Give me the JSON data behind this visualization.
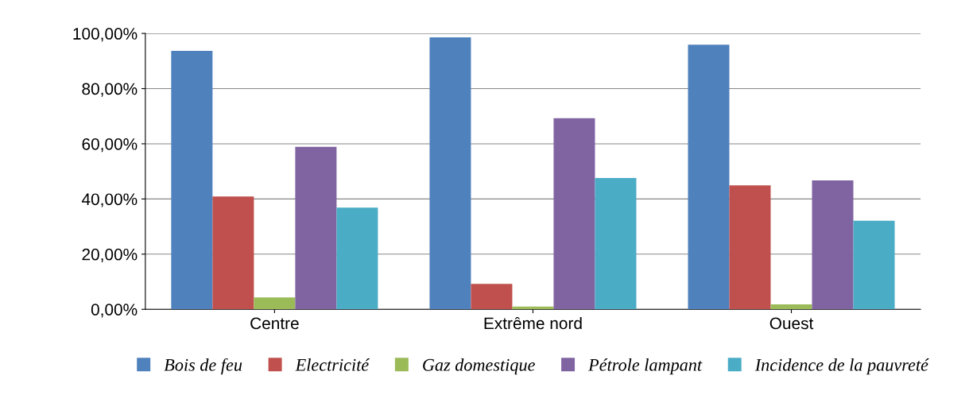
{
  "chart_data": {
    "type": "bar",
    "categories": [
      "Centre",
      "Extrême nord",
      "Ouest"
    ],
    "series": [
      {
        "name": "Bois de feu",
        "color": "#4f81bd",
        "values": [
          93.7,
          98.6,
          95.9
        ]
      },
      {
        "name": "Electricité",
        "color": "#c0504d",
        "values": [
          40.9,
          9.2,
          44.9
        ]
      },
      {
        "name": "Gaz domestique",
        "color": "#9bbb59",
        "values": [
          4.3,
          1,
          1.8
        ]
      },
      {
        "name": "Pétrole lampant",
        "color": "#8064a2",
        "values": [
          58.9,
          69.3,
          46.7
        ]
      },
      {
        "name": "Incidence de la pauvreté",
        "color": "#4bacc6",
        "values": [
          36.9,
          47.6,
          32.1
        ]
      }
    ],
    "ylim": [
      0,
      100
    ],
    "yticks": [
      {
        "value": 0,
        "label": "0,00%"
      },
      {
        "value": 20,
        "label": "20,00%"
      },
      {
        "value": 40,
        "label": "40,00%"
      },
      {
        "value": 60,
        "label": "60,00%"
      },
      {
        "value": 80,
        "label": "80,00%"
      },
      {
        "value": 100,
        "label": "100,00%"
      }
    ],
    "grid": "y",
    "legend": "bottom"
  }
}
